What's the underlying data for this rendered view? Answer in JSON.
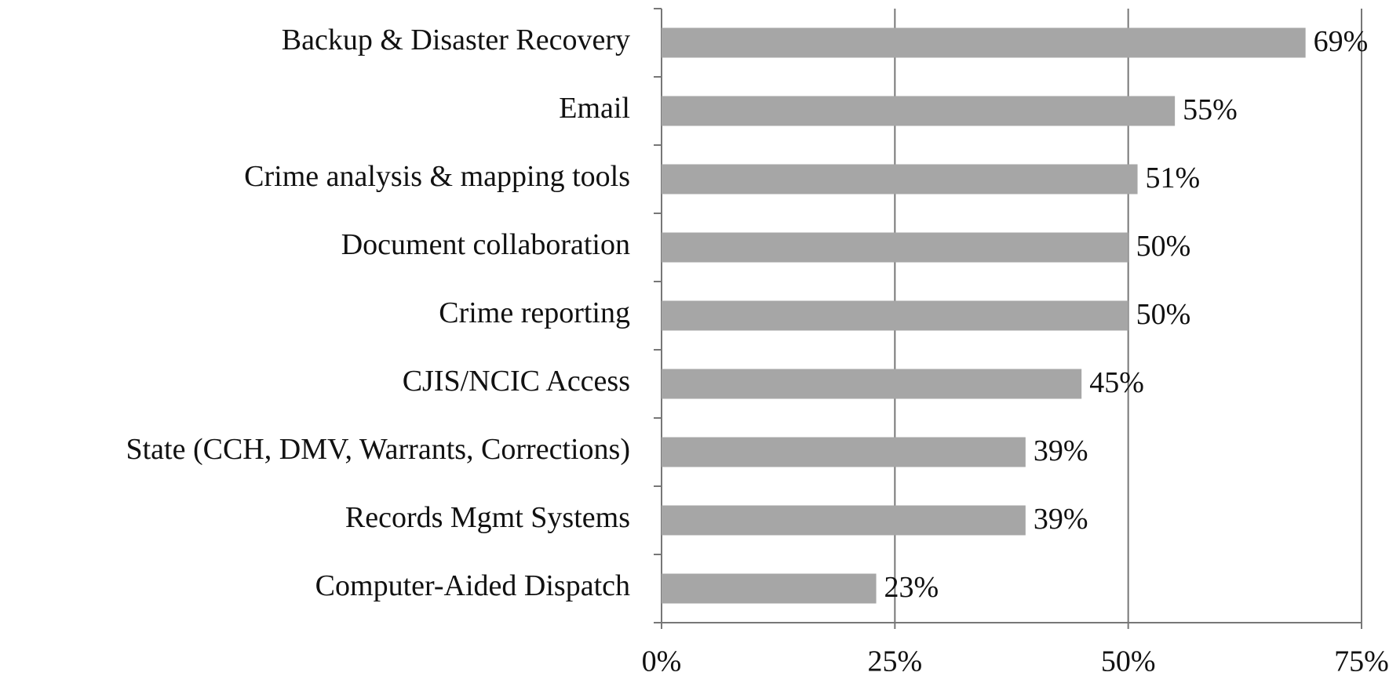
{
  "chart_data": {
    "type": "bar",
    "orientation": "horizontal",
    "categories": [
      "Backup & Disaster Recovery",
      "Email",
      "Crime analysis & mapping tools",
      "Document collaboration",
      "Crime reporting",
      "CJIS/NCIC Access",
      "State (CCH, DMV, Warrants, Corrections)",
      "Records Mgmt Systems",
      "Computer-Aided Dispatch"
    ],
    "values": [
      69,
      55,
      51,
      50,
      50,
      45,
      39,
      39,
      23
    ],
    "value_labels": [
      "69%",
      "55%",
      "51%",
      "50%",
      "50%",
      "45%",
      "39%",
      "39%",
      "23%"
    ],
    "color": "#a6a6a6",
    "xlim": [
      0,
      75
    ],
    "xticks": [
      {
        "value": 0,
        "label": "0%"
      },
      {
        "value": 25,
        "label": "25%"
      },
      {
        "value": 50,
        "label": "50%"
      },
      {
        "value": 75,
        "label": "75%"
      }
    ],
    "grid": true
  }
}
